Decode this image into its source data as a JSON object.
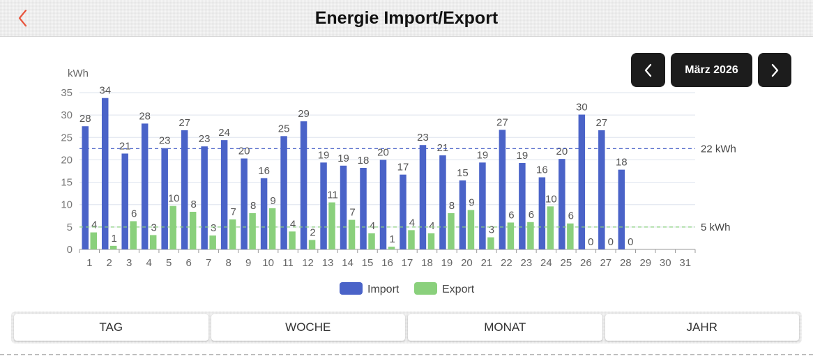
{
  "header": {
    "title": "Energie Import/Export",
    "back_icon": "chevron-left-icon",
    "back_color": "#e8553e"
  },
  "nav": {
    "month_label": "März 2026",
    "prev_icon": "chevron-left-icon",
    "next_icon": "chevron-right-icon"
  },
  "chart_data": {
    "type": "bar",
    "ylabel": "kWh",
    "ylim": [
      0,
      35
    ],
    "yticks": [
      0,
      5,
      10,
      15,
      20,
      25,
      30,
      35
    ],
    "grid": true,
    "categories": [
      "1",
      "2",
      "3",
      "4",
      "5",
      "6",
      "7",
      "8",
      "9",
      "10",
      "11",
      "12",
      "13",
      "14",
      "15",
      "16",
      "17",
      "18",
      "19",
      "20",
      "21",
      "22",
      "23",
      "24",
      "25",
      "26",
      "27",
      "28",
      "29",
      "30",
      "31"
    ],
    "series": [
      {
        "name": "Import",
        "color": "#4a63c8",
        "values": [
          27.5,
          33.8,
          21.4,
          28.1,
          22.6,
          26.6,
          23.0,
          24.4,
          20.3,
          15.9,
          25.3,
          28.6,
          19.4,
          18.7,
          18.2,
          20.0,
          16.7,
          23.3,
          21.0,
          15.4,
          19.4,
          26.7,
          19.3,
          16.1,
          20.2,
          30.1,
          26.6,
          17.8,
          null,
          null,
          null
        ],
        "labels": [
          "28",
          "34",
          "21",
          "28",
          "23",
          "27",
          "23",
          "24",
          "20",
          "16",
          "25",
          "29",
          "19",
          "19",
          "18",
          "20",
          "17",
          "23",
          "21",
          "15",
          "19",
          "27",
          "19",
          "16",
          "20",
          "30",
          "27",
          "18",
          "",
          "",
          ""
        ]
      },
      {
        "name": "Export",
        "color": "#8ad07c",
        "values": [
          3.8,
          0.8,
          6.3,
          3.2,
          9.7,
          8.4,
          3.1,
          6.7,
          8.1,
          9.2,
          4.0,
          2.1,
          10.5,
          6.6,
          3.6,
          0.6,
          4.3,
          3.6,
          8.1,
          8.8,
          2.7,
          6.0,
          6.1,
          9.6,
          5.8,
          0,
          0,
          0,
          null,
          null,
          null
        ],
        "labels": [
          "4",
          "1",
          "6",
          "3",
          "10",
          "8",
          "3",
          "7",
          "8",
          "9",
          "4",
          "2",
          "11",
          "7",
          "4",
          "1",
          "4",
          "4",
          "8",
          "9",
          "3",
          "6",
          "6",
          "10",
          "6",
          "0",
          "0",
          "0",
          "",
          "",
          ""
        ]
      }
    ],
    "reference_lines": [
      {
        "value": 22.5,
        "label": "22 kWh",
        "color": "#4a63c8"
      },
      {
        "value": 5,
        "label": "5 kWh",
        "color": "#8ad07c"
      }
    ],
    "legend": {
      "position": "bottom-center",
      "items": [
        {
          "label": "Import",
          "color": "#4a63c8"
        },
        {
          "label": "Export",
          "color": "#8ad07c"
        }
      ]
    }
  },
  "period_tabs": [
    {
      "label": "TAG"
    },
    {
      "label": "WOCHE"
    },
    {
      "label": "MONAT"
    },
    {
      "label": "JAHR"
    }
  ]
}
